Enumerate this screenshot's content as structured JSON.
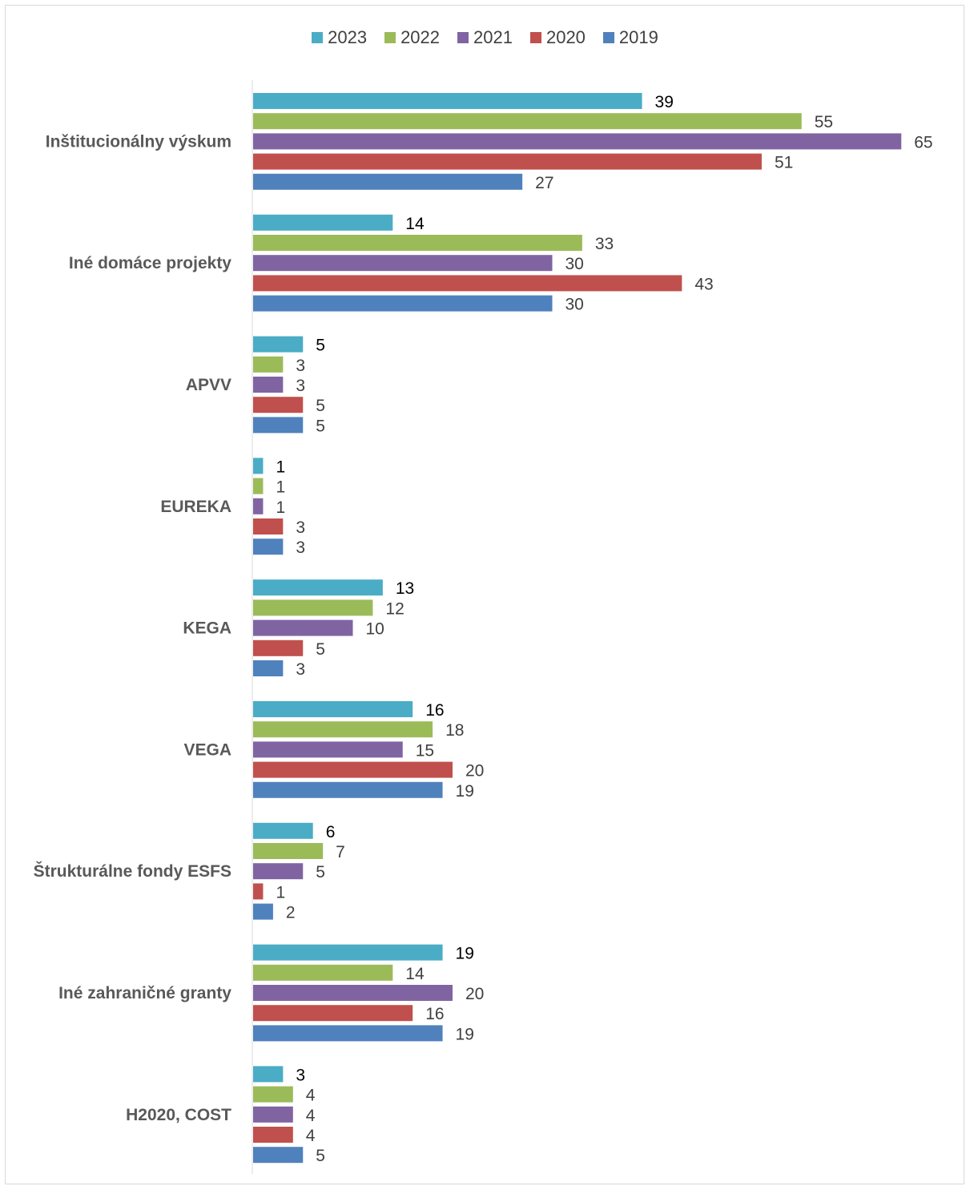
{
  "chart_data": {
    "type": "bar",
    "orientation": "horizontal",
    "categories": [
      "Inštitucionálny výskum",
      "Iné domáce projekty",
      "APVV",
      "EUREKA",
      "KEGA",
      "VEGA",
      "Štrukturálne fondy ESFS",
      "Iné zahraničné granty",
      "H2020, COST"
    ],
    "series": [
      {
        "name": "2023",
        "color": "#4bacc6",
        "values": [
          39,
          14,
          5,
          1,
          13,
          16,
          6,
          19,
          3
        ]
      },
      {
        "name": "2022",
        "color": "#9bbb59",
        "values": [
          55,
          33,
          3,
          1,
          12,
          18,
          7,
          14,
          4
        ]
      },
      {
        "name": "2021",
        "color": "#8064a2",
        "values": [
          65,
          30,
          3,
          1,
          10,
          15,
          5,
          20,
          4
        ]
      },
      {
        "name": "2020",
        "color": "#c0504d",
        "values": [
          51,
          43,
          5,
          3,
          5,
          20,
          1,
          16,
          4
        ]
      },
      {
        "name": "2019",
        "color": "#4f81bd",
        "values": [
          27,
          30,
          5,
          3,
          3,
          19,
          2,
          19,
          5
        ]
      }
    ],
    "xlim": [
      0,
      65
    ],
    "grid": false,
    "legend_position": "top",
    "data_labels": true
  }
}
